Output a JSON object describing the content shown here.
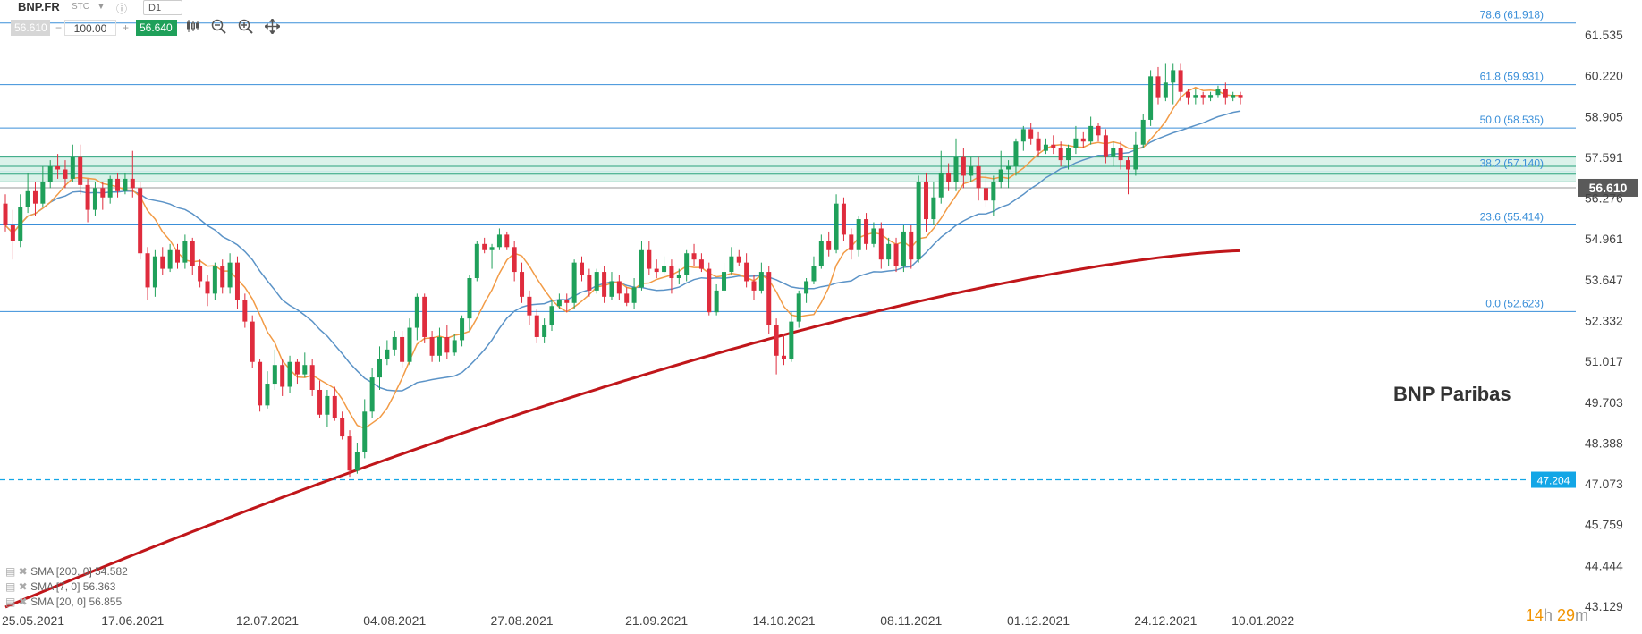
{
  "toolbar": {
    "symbol": "BNP.FR",
    "stc": "STC",
    "info": "ⓘ",
    "timeframe": "D1",
    "bid": "56.610",
    "minus": "−",
    "volume": "100.00",
    "plus": "+",
    "ask": "56.640",
    "icons": [
      "candles-icon",
      "zoom-out-icon",
      "zoom-in-icon",
      "move-icon"
    ]
  },
  "brand_label": "BNP Paribas",
  "countdown": {
    "hours": "14",
    "h": "h",
    "minutes": "29",
    "m": "m"
  },
  "legend": [
    {
      "label": "SMA [200, 0] 54.582",
      "color": "#c0161a"
    },
    {
      "label": "SMA [7, 0] 56.363",
      "color": "#f29b46"
    },
    {
      "label": "SMA [20, 0] 56.855",
      "color": "#5b93c7"
    }
  ],
  "colors": {
    "up": "#1fa05a",
    "down": "#df2c3d",
    "fib": "#3a8fd9",
    "sma200": "#c0161a",
    "sma7": "#f29b46",
    "sma20": "#5b93c7",
    "price_tag": "#5a5a5a",
    "alert_tag": "#13a6e6"
  },
  "chart_data": {
    "type": "candlestick",
    "x_start": "25.05.2021",
    "y_ticks": [
      "61.535",
      "60.220",
      "58.905",
      "57.591",
      "56.276",
      "54.961",
      "53.647",
      "52.332",
      "51.017",
      "49.703",
      "48.388",
      "47.073",
      "45.759",
      "44.444",
      "43.129"
    ],
    "y_min": 43.129,
    "y_max": 61.535,
    "date_ticks": [
      {
        "label": "25.05.2021",
        "bar": 0
      },
      {
        "label": "17.06.2021",
        "bar": 17
      },
      {
        "label": "12.07.2021",
        "bar": 35
      },
      {
        "label": "04.08.2021",
        "bar": 52
      },
      {
        "label": "27.08.2021",
        "bar": 69
      },
      {
        "label": "21.09.2021",
        "bar": 87
      },
      {
        "label": "14.10.2021",
        "bar": 104
      },
      {
        "label": "08.11.2021",
        "bar": 121
      },
      {
        "label": "01.12.2021",
        "bar": 138
      },
      {
        "label": "24.12.2021",
        "bar": 155
      },
      {
        "label": "10.01.2022",
        "bar": 168
      }
    ],
    "fib_levels": [
      {
        "label": "78.6 (61.918)",
        "value": 61.918
      },
      {
        "label": "61.8 (59.931)",
        "value": 59.931
      },
      {
        "label": "50.0 (58.535)",
        "value": 58.535
      },
      {
        "label": "38.2 (57.140)",
        "value": 57.14
      },
      {
        "label": "23.6 (55.414)",
        "value": 55.414
      },
      {
        "label": "0.0 (52.623)",
        "value": 52.623
      }
    ],
    "zone": [
      56.8,
      57.6
    ],
    "zone_lines": [
      57.6,
      57.3,
      57.05,
      56.8
    ],
    "current_price": {
      "label": "56.610",
      "value": 56.61
    },
    "alert_level": {
      "label": "47.204",
      "value": 47.204
    },
    "candles": [
      [
        56.1,
        55.4,
        56.4,
        55.2
      ],
      [
        55.4,
        54.9,
        55.9,
        54.3
      ],
      [
        54.9,
        56.0,
        56.4,
        54.7
      ],
      [
        56.0,
        56.5,
        57.1,
        55.8
      ],
      [
        56.5,
        56.1,
        56.8,
        55.7
      ],
      [
        56.1,
        56.8,
        57.3,
        56.0
      ],
      [
        56.8,
        57.3,
        57.5,
        56.6
      ],
      [
        57.3,
        57.2,
        57.7,
        56.9
      ],
      [
        57.2,
        56.9,
        57.5,
        56.6
      ],
      [
        56.9,
        57.6,
        58.0,
        56.8
      ],
      [
        57.6,
        56.7,
        58.0,
        56.4
      ],
      [
        56.7,
        55.9,
        56.9,
        55.5
      ],
      [
        55.9,
        56.6,
        56.8,
        55.7
      ],
      [
        56.6,
        56.3,
        56.8,
        55.9
      ],
      [
        56.3,
        56.9,
        57.0,
        56.1
      ],
      [
        56.9,
        56.5,
        57.1,
        56.3
      ],
      [
        56.5,
        56.9,
        57.1,
        56.4
      ],
      [
        56.9,
        56.6,
        57.8,
        56.3
      ],
      [
        56.6,
        54.5,
        56.8,
        54.3
      ],
      [
        54.5,
        53.4,
        54.7,
        53.0
      ],
      [
        53.4,
        54.4,
        54.6,
        53.1
      ],
      [
        54.4,
        54.0,
        54.7,
        53.8
      ],
      [
        54.0,
        54.6,
        54.8,
        53.9
      ],
      [
        54.6,
        54.2,
        54.8,
        54.0
      ],
      [
        54.2,
        54.9,
        55.1,
        54.0
      ],
      [
        54.9,
        54.1,
        55.0,
        53.8
      ],
      [
        54.1,
        53.6,
        54.3,
        53.4
      ],
      [
        53.6,
        53.2,
        53.8,
        52.8
      ],
      [
        53.2,
        54.1,
        54.2,
        53.0
      ],
      [
        54.1,
        53.4,
        54.3,
        53.2
      ],
      [
        53.4,
        54.2,
        54.5,
        53.2
      ],
      [
        54.2,
        53.0,
        54.4,
        52.7
      ],
      [
        53.0,
        52.3,
        53.2,
        52.1
      ],
      [
        52.3,
        51.0,
        52.5,
        50.8
      ],
      [
        51.0,
        49.6,
        51.1,
        49.4
      ],
      [
        49.6,
        50.3,
        50.7,
        49.5
      ],
      [
        50.3,
        50.9,
        51.4,
        50.1
      ],
      [
        50.9,
        50.2,
        51.1,
        49.9
      ],
      [
        50.2,
        51.0,
        51.2,
        50.0
      ],
      [
        51.0,
        50.6,
        51.1,
        50.3
      ],
      [
        50.6,
        50.9,
        51.3,
        50.5
      ],
      [
        50.9,
        50.1,
        51.1,
        49.9
      ],
      [
        50.1,
        49.3,
        50.4,
        49.2
      ],
      [
        49.3,
        49.9,
        50.1,
        48.9
      ],
      [
        49.9,
        49.2,
        50.2,
        49.1
      ],
      [
        49.2,
        48.6,
        49.4,
        48.5
      ],
      [
        48.6,
        47.5,
        48.8,
        47.3
      ],
      [
        47.5,
        48.1,
        48.4,
        47.4
      ],
      [
        48.1,
        49.4,
        49.8,
        47.9
      ],
      [
        49.4,
        50.5,
        50.8,
        49.2
      ],
      [
        50.5,
        51.1,
        51.5,
        50.1
      ],
      [
        51.1,
        51.4,
        51.7,
        50.9
      ],
      [
        51.4,
        51.8,
        52.0,
        51.2
      ],
      [
        51.8,
        51.0,
        52.0,
        50.8
      ],
      [
        51.0,
        52.1,
        52.4,
        50.9
      ],
      [
        52.1,
        53.1,
        53.2,
        51.7
      ],
      [
        53.1,
        51.8,
        53.2,
        51.6
      ],
      [
        51.8,
        51.2,
        52.0,
        51.0
      ],
      [
        51.2,
        51.8,
        52.1,
        51.0
      ],
      [
        51.8,
        51.3,
        52.2,
        51.1
      ],
      [
        51.3,
        51.7,
        51.9,
        51.2
      ],
      [
        51.7,
        52.4,
        52.5,
        51.5
      ],
      [
        52.4,
        53.7,
        53.8,
        52.0
      ],
      [
        53.7,
        54.8,
        54.9,
        53.6
      ],
      [
        54.8,
        54.6,
        55.0,
        54.5
      ],
      [
        54.6,
        54.7,
        54.8,
        54.0
      ],
      [
        54.7,
        55.1,
        55.3,
        54.6
      ],
      [
        55.1,
        54.7,
        55.2,
        54.6
      ],
      [
        54.7,
        53.9,
        54.9,
        53.6
      ],
      [
        53.9,
        53.1,
        54.2,
        52.9
      ],
      [
        53.1,
        52.5,
        53.3,
        52.2
      ],
      [
        52.5,
        51.8,
        52.7,
        51.6
      ],
      [
        51.8,
        52.2,
        52.4,
        51.6
      ],
      [
        52.2,
        52.8,
        53.0,
        52.0
      ],
      [
        52.8,
        53.0,
        53.2,
        52.7
      ],
      [
        53.0,
        52.9,
        53.2,
        52.6
      ],
      [
        52.9,
        54.2,
        54.3,
        52.7
      ],
      [
        54.2,
        53.8,
        54.4,
        53.6
      ],
      [
        53.8,
        53.3,
        54.0,
        53.1
      ],
      [
        53.3,
        53.9,
        54.0,
        53.2
      ],
      [
        53.9,
        53.1,
        54.1,
        52.9
      ],
      [
        53.1,
        53.6,
        53.9,
        53.0
      ],
      [
        53.6,
        53.2,
        53.8,
        53.0
      ],
      [
        53.2,
        52.9,
        53.4,
        52.8
      ],
      [
        52.9,
        53.4,
        53.7,
        52.7
      ],
      [
        53.4,
        54.6,
        54.9,
        53.3
      ],
      [
        54.6,
        54.0,
        54.9,
        53.8
      ],
      [
        54.0,
        53.9,
        54.3,
        53.7
      ],
      [
        53.9,
        54.1,
        54.4,
        53.8
      ],
      [
        54.1,
        53.7,
        54.3,
        53.2
      ],
      [
        53.7,
        53.8,
        54.0,
        53.5
      ],
      [
        53.8,
        54.5,
        54.6,
        53.6
      ],
      [
        54.5,
        54.3,
        54.8,
        54.1
      ],
      [
        54.3,
        54.0,
        54.5,
        53.9
      ],
      [
        54.0,
        52.6,
        54.2,
        52.5
      ],
      [
        52.6,
        53.3,
        53.5,
        52.5
      ],
      [
        53.3,
        53.9,
        54.2,
        53.2
      ],
      [
        53.9,
        54.4,
        54.7,
        53.8
      ],
      [
        54.4,
        54.2,
        54.6,
        54.1
      ],
      [
        54.2,
        53.6,
        54.5,
        53.4
      ],
      [
        53.6,
        53.3,
        53.8,
        53.0
      ],
      [
        53.3,
        53.9,
        54.2,
        53.2
      ],
      [
        53.9,
        52.2,
        54.1,
        51.9
      ],
      [
        52.2,
        51.2,
        52.4,
        50.6
      ],
      [
        51.2,
        51.1,
        51.9,
        50.9
      ],
      [
        51.1,
        52.3,
        52.6,
        51.0
      ],
      [
        52.3,
        53.2,
        53.3,
        52.1
      ],
      [
        53.2,
        53.6,
        53.7,
        52.9
      ],
      [
        53.6,
        54.1,
        54.4,
        53.5
      ],
      [
        54.1,
        54.9,
        55.1,
        54.0
      ],
      [
        54.9,
        54.6,
        55.2,
        54.4
      ],
      [
        54.6,
        56.1,
        56.4,
        54.5
      ],
      [
        56.1,
        55.1,
        56.3,
        54.9
      ],
      [
        55.1,
        54.6,
        55.3,
        54.3
      ],
      [
        54.6,
        55.6,
        55.7,
        54.4
      ],
      [
        55.6,
        54.8,
        55.8,
        54.6
      ],
      [
        54.8,
        55.3,
        55.5,
        54.7
      ],
      [
        55.3,
        54.3,
        55.5,
        54.0
      ],
      [
        54.3,
        54.8,
        55.0,
        54.1
      ],
      [
        54.8,
        54.1,
        55.0,
        53.9
      ],
      [
        54.1,
        55.2,
        55.4,
        53.9
      ],
      [
        55.2,
        54.3,
        55.4,
        54.0
      ],
      [
        54.3,
        56.8,
        57.0,
        54.2
      ],
      [
        56.8,
        55.6,
        57.1,
        55.2
      ],
      [
        55.6,
        56.3,
        56.8,
        55.4
      ],
      [
        56.3,
        57.1,
        57.8,
        56.1
      ],
      [
        57.1,
        56.8,
        57.4,
        56.5
      ],
      [
        56.8,
        57.6,
        58.2,
        56.5
      ],
      [
        57.6,
        57.0,
        57.9,
        56.6
      ],
      [
        57.0,
        57.3,
        57.6,
        56.8
      ],
      [
        57.3,
        56.6,
        57.6,
        56.2
      ],
      [
        56.6,
        56.2,
        57.1,
        56.0
      ],
      [
        56.2,
        56.8,
        57.0,
        55.7
      ],
      [
        56.8,
        57.2,
        57.8,
        56.6
      ],
      [
        57.2,
        57.3,
        57.5,
        56.6
      ],
      [
        57.3,
        58.1,
        58.2,
        57.0
      ],
      [
        58.1,
        58.5,
        58.6,
        57.8
      ],
      [
        58.5,
        58.2,
        58.7,
        58.0
      ],
      [
        58.2,
        57.8,
        58.4,
        57.6
      ],
      [
        57.8,
        58.0,
        58.2,
        57.7
      ],
      [
        58.0,
        57.9,
        58.3,
        57.7
      ],
      [
        57.9,
        57.5,
        58.1,
        57.3
      ],
      [
        57.5,
        57.9,
        58.0,
        57.2
      ],
      [
        57.9,
        58.2,
        58.6,
        57.7
      ],
      [
        58.2,
        58.1,
        58.4,
        57.9
      ],
      [
        58.1,
        58.6,
        58.9,
        58.0
      ],
      [
        58.6,
        58.3,
        58.7,
        58.1
      ],
      [
        58.3,
        57.6,
        58.5,
        57.4
      ],
      [
        57.6,
        57.9,
        58.1,
        57.3
      ],
      [
        57.9,
        57.5,
        58.1,
        57.2
      ],
      [
        57.5,
        57.2,
        57.6,
        56.4
      ],
      [
        57.2,
        58.0,
        58.4,
        57.0
      ],
      [
        58.0,
        58.8,
        59.0,
        57.9
      ],
      [
        58.8,
        60.2,
        60.4,
        58.6
      ],
      [
        60.2,
        59.5,
        60.5,
        59.3
      ],
      [
        59.5,
        60.0,
        60.6,
        59.4
      ],
      [
        60.0,
        60.4,
        60.6,
        59.3
      ],
      [
        60.4,
        59.7,
        60.6,
        59.4
      ],
      [
        59.7,
        59.5,
        59.8,
        59.3
      ],
      [
        59.5,
        59.6,
        59.8,
        59.3
      ],
      [
        59.6,
        59.5,
        59.7,
        59.3
      ],
      [
        59.5,
        59.6,
        59.7,
        59.4
      ],
      [
        59.6,
        59.8,
        59.9,
        59.5
      ],
      [
        59.8,
        59.5,
        60.0,
        59.3
      ],
      [
        59.5,
        59.6,
        59.7,
        59.4
      ],
      [
        59.6,
        59.5,
        59.7,
        59.3
      ]
    ]
  }
}
